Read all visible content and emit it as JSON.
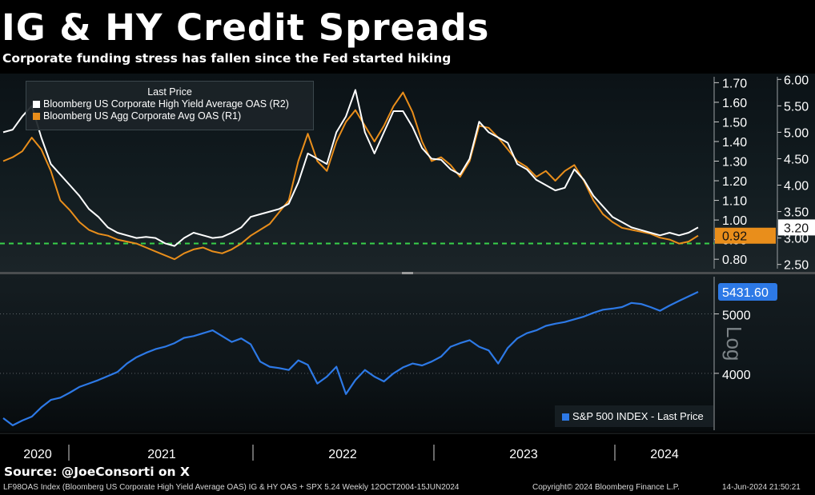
{
  "title": "IG & HY Credit Spreads",
  "subtitle": "Corporate funding stress has fallen since the Fed started hiking",
  "source": "Source:  @JoeConsorti on X",
  "footer": {
    "left": "LF98OAS Index (Bloomberg US Corporate High Yield Average OAS) IG & HY OAS + SPX 5.24  Weekly 12OCT2004-15JUN2024",
    "center": "Copyright© 2024 Bloomberg Finance L.P.",
    "right": "14-Jun-2024 21:50:21"
  },
  "legend_top": {
    "header": "Last Price",
    "hy": "Bloomberg US Corporate High Yield Average OAS  (R2)",
    "ig": "Bloomberg US Agg Corporate Avg OAS  (R1)"
  },
  "legend_bottom": {
    "spx": "S&P 500 INDEX - Last Price"
  },
  "log_label": "Log",
  "colors": {
    "hy": "#ffffff",
    "ig": "#e98e1b",
    "spx": "#2d79e6",
    "reference": "#39d14a",
    "background": "#000000"
  },
  "chart_data": [
    {
      "type": "line",
      "x_axis_ticks": [
        "2020",
        "2021",
        "2022",
        "2023",
        "2024"
      ],
      "y_axis_r1": {
        "ticks": [
          "0.80",
          "0.90",
          "1.00",
          "1.10",
          "1.20",
          "1.30",
          "1.40",
          "1.50",
          "1.60",
          "1.70"
        ],
        "ylim": [
          0.76,
          1.73
        ]
      },
      "y_axis_r2": {
        "ticks": [
          "2.50",
          "3.00",
          "3.50",
          "4.00",
          "4.50",
          "5.00",
          "5.50",
          "6.00"
        ],
        "ylim": [
          2.45,
          6.05
        ]
      },
      "reference_line": {
        "axis": "R1",
        "value": 0.88,
        "style": "dashed"
      },
      "last_values": {
        "ig": "0.92",
        "hy": "3.20"
      },
      "series": [
        {
          "name": "Bloomberg US Agg Corporate Avg OAS  (R1)",
          "axis": "R1",
          "values": [
            1.3,
            1.32,
            1.35,
            1.42,
            1.36,
            1.25,
            1.1,
            1.05,
            0.99,
            0.95,
            0.93,
            0.92,
            0.9,
            0.89,
            0.88,
            0.86,
            0.84,
            0.82,
            0.8,
            0.83,
            0.85,
            0.86,
            0.84,
            0.83,
            0.85,
            0.88,
            0.92,
            0.95,
            0.98,
            1.04,
            1.1,
            1.3,
            1.44,
            1.3,
            1.25,
            1.4,
            1.5,
            1.56,
            1.48,
            1.4,
            1.48,
            1.58,
            1.65,
            1.55,
            1.4,
            1.3,
            1.32,
            1.28,
            1.22,
            1.3,
            1.48,
            1.47,
            1.42,
            1.36,
            1.3,
            1.27,
            1.22,
            1.25,
            1.2,
            1.25,
            1.28,
            1.2,
            1.1,
            1.03,
            0.99,
            0.96,
            0.95,
            0.94,
            0.93,
            0.91,
            0.9,
            0.88,
            0.89,
            0.92
          ]
        },
        {
          "name": "Bloomberg US Corporate High Yield Average OAS  (R2)",
          "axis": "R2",
          "values": [
            5.0,
            5.05,
            5.3,
            5.5,
            4.9,
            4.4,
            4.2,
            4.0,
            3.8,
            3.55,
            3.4,
            3.2,
            3.1,
            3.05,
            3.0,
            3.02,
            3.0,
            2.9,
            2.85,
            3.0,
            3.1,
            3.05,
            3.0,
            3.02,
            3.1,
            3.2,
            3.4,
            3.45,
            3.5,
            3.55,
            3.65,
            4.05,
            4.6,
            4.5,
            4.4,
            5.0,
            5.3,
            5.8,
            5.0,
            4.6,
            5.0,
            5.4,
            5.4,
            5.1,
            4.7,
            4.5,
            4.48,
            4.3,
            4.2,
            4.5,
            5.2,
            5.0,
            4.9,
            4.8,
            4.4,
            4.3,
            4.1,
            4.0,
            3.9,
            3.95,
            4.3,
            4.1,
            3.8,
            3.6,
            3.4,
            3.3,
            3.2,
            3.15,
            3.1,
            3.05,
            3.1,
            3.05,
            3.1,
            3.2
          ]
        }
      ]
    },
    {
      "type": "line",
      "x_axis_ticks": [
        "2020",
        "2021",
        "2022",
        "2023",
        "2024"
      ],
      "y_axis": {
        "ticks": [
          "4000",
          "5000"
        ],
        "scale": "log",
        "ylim": [
          3250,
          5750
        ]
      },
      "last_value": "5431.60",
      "series": [
        {
          "name": "S&P 500 INDEX - Last Price",
          "values": [
            3380,
            3290,
            3350,
            3400,
            3520,
            3620,
            3650,
            3720,
            3800,
            3850,
            3900,
            3960,
            4020,
            4150,
            4250,
            4320,
            4380,
            4420,
            4480,
            4570,
            4600,
            4650,
            4700,
            4600,
            4500,
            4560,
            4460,
            4180,
            4100,
            4080,
            4050,
            4200,
            4130,
            3850,
            3950,
            4100,
            3700,
            3900,
            4050,
            3950,
            3880,
            4000,
            4090,
            4150,
            4120,
            4180,
            4260,
            4420,
            4480,
            4530,
            4420,
            4360,
            4150,
            4400,
            4560,
            4650,
            4700,
            4780,
            4820,
            4850,
            4900,
            4950,
            5020,
            5080,
            5100,
            5130,
            5210,
            5190,
            5130,
            5060,
            5160,
            5250,
            5340,
            5431
          ]
        }
      ]
    }
  ]
}
